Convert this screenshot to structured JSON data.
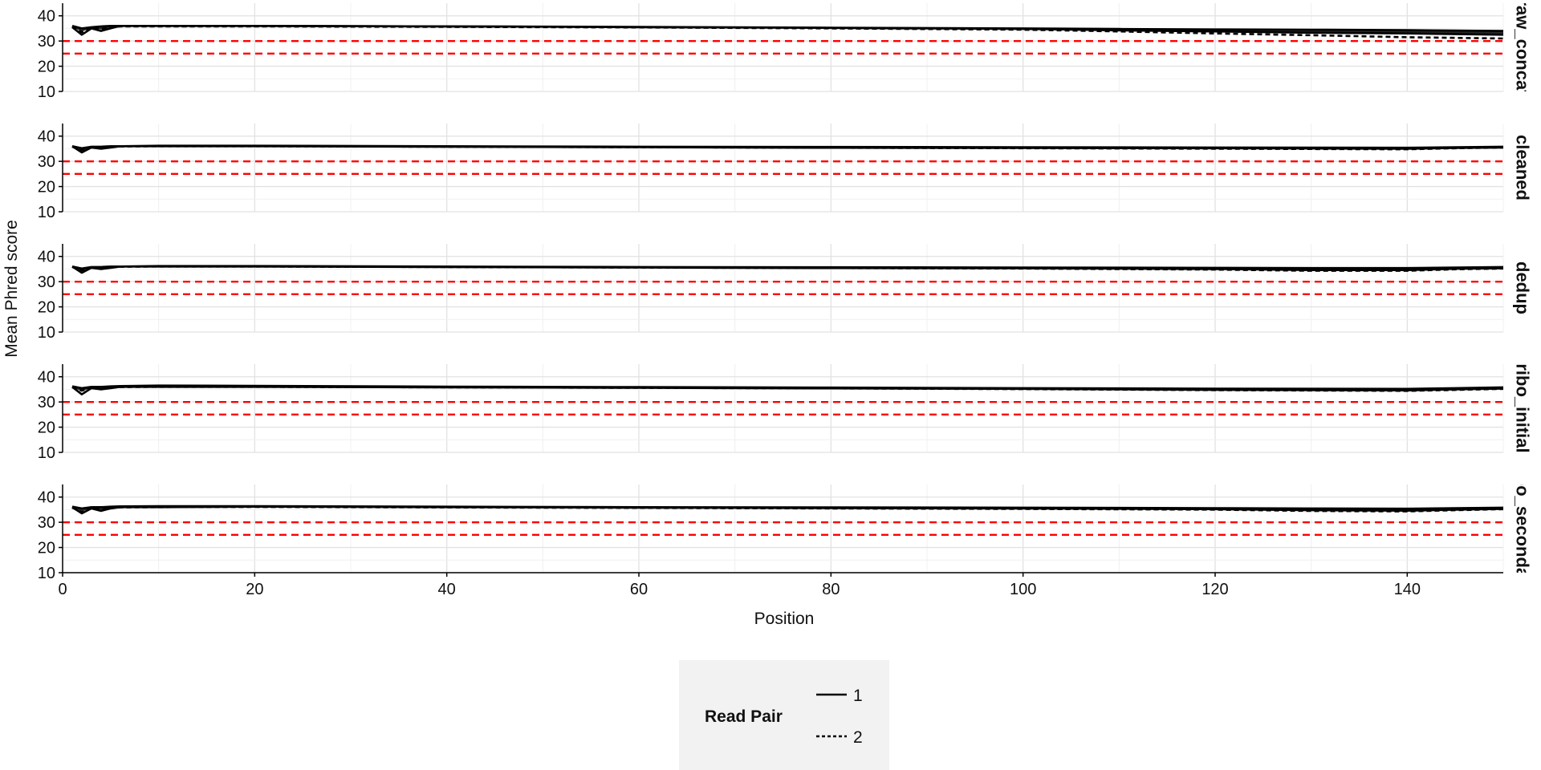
{
  "chart_data": {
    "type": "line",
    "xlabel": "Position",
    "ylabel": "Mean Phred score",
    "xlim": [
      0,
      150
    ],
    "ylim": [
      10,
      45
    ],
    "x_ticks": [
      0,
      20,
      40,
      60,
      80,
      100,
      120,
      140
    ],
    "y_ticks": [
      10,
      20,
      30,
      40
    ],
    "grid": true,
    "threshold_lines": [
      {
        "y": 30,
        "color": "#ff0000",
        "style": "dashed"
      },
      {
        "y": 25,
        "color": "#ff0000",
        "style": "dashed"
      }
    ],
    "legend": {
      "title": "Read Pair",
      "placement": "bottom",
      "entries": [
        {
          "label": "1",
          "style": "solid"
        },
        {
          "label": "2",
          "style": "dashed"
        }
      ]
    },
    "panels": [
      {
        "label": "raw_concat",
        "x": [
          1,
          2,
          3,
          4,
          5,
          6,
          10,
          20,
          40,
          60,
          80,
          100,
          110,
          120,
          130,
          140,
          150
        ],
        "series": [
          {
            "read_pair": "1",
            "values": [
              35.5,
              32.5,
              35,
              34,
              35,
              36,
              36,
              36,
              35.8,
              35.5,
              35.2,
              34.8,
              34.3,
              33.8,
              33.3,
              33,
              32.5
            ]
          },
          {
            "read_pair": "1",
            "values": [
              36,
              35,
              35.5,
              35.8,
              36,
              36,
              36,
              36,
              35.8,
              35.6,
              35.3,
              35,
              34.8,
              34.6,
              34.5,
              34.3,
              34
            ]
          },
          {
            "read_pair": "2",
            "values": [
              35.8,
              33.5,
              35.2,
              34.8,
              35.5,
              35.8,
              35.8,
              35.8,
              35.6,
              35.4,
              35,
              34.5,
              33.8,
              33,
              32.3,
              31.5,
              31
            ]
          }
        ]
      },
      {
        "label": "cleaned",
        "x": [
          1,
          2,
          3,
          4,
          5,
          6,
          10,
          20,
          40,
          60,
          80,
          100,
          120,
          140,
          145,
          150
        ],
        "series": [
          {
            "read_pair": "1",
            "values": [
              36,
              33.5,
              35.5,
              35,
              35.5,
              36,
              36,
              36,
              35.8,
              35.6,
              35.4,
              35.3,
              35.2,
              35,
              35.3,
              35.5
            ]
          },
          {
            "read_pair": "1",
            "values": [
              36,
              35.2,
              35.8,
              35.8,
              36,
              36,
              36.2,
              36.2,
              36,
              35.8,
              35.7,
              35.6,
              35.5,
              35.4,
              35.6,
              35.8
            ]
          },
          {
            "read_pair": "2",
            "values": [
              35.8,
              34.5,
              35.5,
              35.2,
              35.6,
              35.9,
              36,
              36,
              35.8,
              35.6,
              35.4,
              35.2,
              35,
              34.8,
              35.2,
              35.5
            ]
          }
        ]
      },
      {
        "label": "dedup",
        "x": [
          1,
          2,
          3,
          4,
          5,
          6,
          10,
          20,
          40,
          60,
          80,
          100,
          120,
          130,
          140,
          145,
          150
        ],
        "series": [
          {
            "read_pair": "1",
            "values": [
              36,
              33.5,
              35.5,
              35,
              35.5,
              36,
              36,
              36,
              35.8,
              35.6,
              35.4,
              35.3,
              35,
              34.6,
              34.6,
              35.1,
              35.3
            ]
          },
          {
            "read_pair": "1",
            "values": [
              36,
              35.2,
              35.8,
              35.8,
              36,
              36,
              36.2,
              36.2,
              36,
              35.8,
              35.7,
              35.6,
              35.5,
              35.4,
              35.4,
              35.6,
              35.8
            ]
          },
          {
            "read_pair": "2",
            "values": [
              35.8,
              34.5,
              35.5,
              35.2,
              35.6,
              35.9,
              36,
              36,
              35.8,
              35.6,
              35.4,
              35.2,
              34.8,
              34.3,
              34.3,
              34.9,
              35.2
            ]
          }
        ]
      },
      {
        "label": "ribo_initial",
        "x": [
          1,
          2,
          3,
          4,
          5,
          6,
          10,
          20,
          40,
          60,
          80,
          100,
          120,
          140,
          145,
          150
        ],
        "series": [
          {
            "read_pair": "1",
            "values": [
              36,
              33,
              35.5,
              35,
              35.5,
              36,
              36,
              36,
              35.8,
              35.6,
              35.4,
              35.2,
              34.8,
              34.6,
              35,
              35.3
            ]
          },
          {
            "read_pair": "1",
            "values": [
              36.2,
              35.5,
              36,
              36,
              36.2,
              36.3,
              36.5,
              36.4,
              36.1,
              35.9,
              35.7,
              35.5,
              35.3,
              35.2,
              35.5,
              35.8
            ]
          },
          {
            "read_pair": "2",
            "values": [
              35.8,
              34.5,
              35.5,
              35.2,
              35.6,
              35.9,
              36,
              36,
              35.8,
              35.6,
              35.4,
              35.1,
              34.7,
              34.4,
              34.8,
              35.2
            ]
          }
        ]
      },
      {
        "label": "ribo_secondary",
        "x": [
          1,
          2,
          3,
          4,
          5,
          6,
          10,
          20,
          40,
          60,
          80,
          100,
          120,
          130,
          140,
          145,
          150
        ],
        "series": [
          {
            "read_pair": "1",
            "values": [
              36,
              33.5,
              35.5,
              34.5,
              35.5,
              36,
              36,
              36.2,
              36,
              35.8,
              35.6,
              35.5,
              35.2,
              34.8,
              34.6,
              35,
              35.3
            ]
          },
          {
            "read_pair": "1",
            "values": [
              36.2,
              35.5,
              36,
              36,
              36.2,
              36.3,
              36.4,
              36.4,
              36.2,
              36,
              35.9,
              35.8,
              35.6,
              35.5,
              35.4,
              35.6,
              35.8
            ]
          },
          {
            "read_pair": "2",
            "values": [
              35.8,
              34,
              35.5,
              35,
              35.6,
              35.9,
              36,
              36.1,
              35.9,
              35.7,
              35.5,
              35.3,
              35,
              34.5,
              34.3,
              34.8,
              35.2
            ]
          }
        ]
      }
    ]
  }
}
